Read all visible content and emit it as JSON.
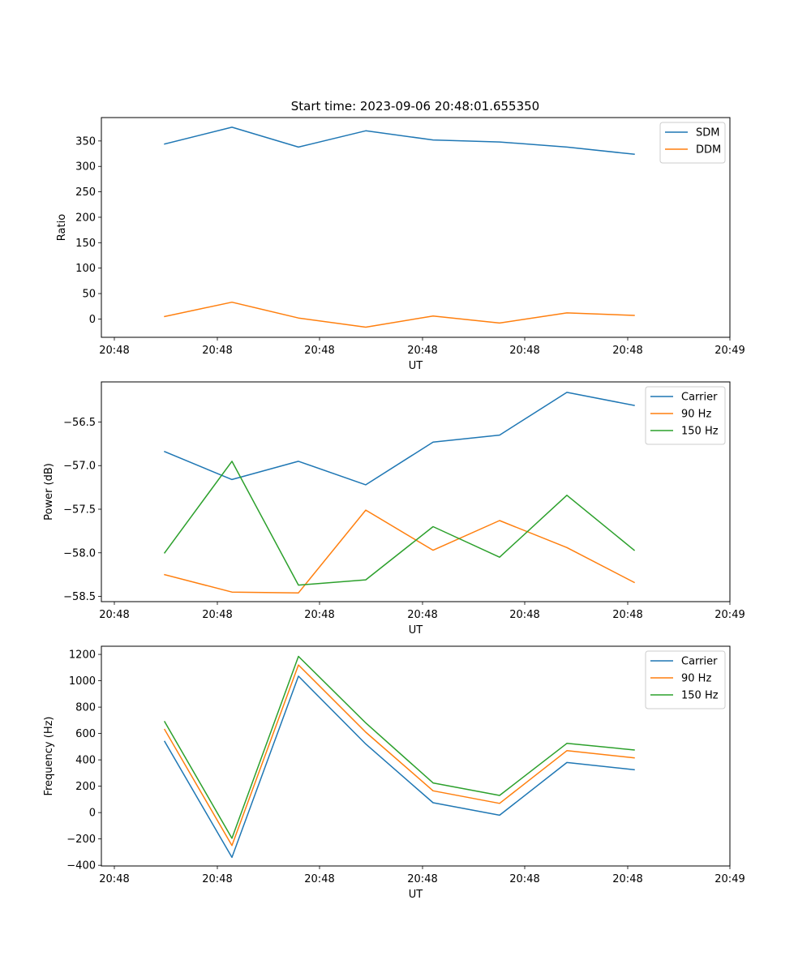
{
  "figure": {
    "title": "Start time: 2023-09-06 20:48:01.655350"
  },
  "chart_data": [
    {
      "type": "line",
      "ylabel": "Ratio",
      "xlabel": "UT",
      "xticklabels": [
        "20:48",
        "20:48",
        "20:48",
        "20:48",
        "20:48",
        "20:48",
        "20:49"
      ],
      "yticks": [
        0,
        50,
        100,
        150,
        200,
        250,
        300,
        350
      ],
      "yticklabels": [
        "0",
        "50",
        "100",
        "150",
        "200",
        "250",
        "300",
        "350"
      ],
      "ylim": [
        -36,
        396
      ],
      "legend_position": "top-right",
      "series": [
        {
          "name": "SDM",
          "color": "#1f77b4",
          "values": [
            344,
            377,
            338,
            370,
            352,
            348,
            338,
            324
          ]
        },
        {
          "name": "DDM",
          "color": "#ff7f0e",
          "values": [
            5,
            33,
            2,
            -16,
            6,
            -8,
            12,
            7
          ]
        }
      ]
    },
    {
      "type": "line",
      "ylabel": "Power (dB)",
      "xlabel": "UT",
      "xticklabels": [
        "20:48",
        "20:48",
        "20:48",
        "20:48",
        "20:48",
        "20:48",
        "20:49"
      ],
      "yticks": [
        -58.5,
        -58.0,
        -57.5,
        -57.0,
        -56.5
      ],
      "yticklabels": [
        "−58.5",
        "−58.0",
        "−57.5",
        "−57.0",
        "−56.5"
      ],
      "ylim": [
        -58.56,
        -56.04
      ],
      "legend_position": "top-right",
      "series": [
        {
          "name": "Carrier",
          "color": "#1f77b4",
          "values": [
            -56.84,
            -57.16,
            -56.95,
            -57.22,
            -56.73,
            -56.65,
            -56.16,
            -56.31
          ]
        },
        {
          "name": "90 Hz",
          "color": "#ff7f0e",
          "values": [
            -58.25,
            -58.45,
            -58.46,
            -57.51,
            -57.97,
            -57.63,
            -57.94,
            -58.34
          ]
        },
        {
          "name": "150 Hz",
          "color": "#2ca02c",
          "values": [
            -58.0,
            -56.95,
            -58.37,
            -58.31,
            -57.7,
            -58.05,
            -57.34,
            -57.97
          ]
        }
      ]
    },
    {
      "type": "line",
      "ylabel": "Frequency (Hz)",
      "xlabel": "UT",
      "xticklabels": [
        "20:48",
        "20:48",
        "20:48",
        "20:48",
        "20:48",
        "20:48",
        "20:49"
      ],
      "yticks": [
        -400,
        -200,
        0,
        200,
        400,
        600,
        800,
        1000,
        1200
      ],
      "yticklabels": [
        "−400",
        "−200",
        "0",
        "200",
        "400",
        "600",
        "800",
        "1000",
        "1200"
      ],
      "ylim": [
        -405,
        1262
      ],
      "legend_position": "top-right",
      "series": [
        {
          "name": "Carrier",
          "color": "#1f77b4",
          "values": [
            540,
            -340,
            1035,
            520,
            75,
            -20,
            380,
            325
          ]
        },
        {
          "name": "90 Hz",
          "color": "#ff7f0e",
          "values": [
            630,
            -250,
            1120,
            610,
            165,
            70,
            470,
            415
          ]
        },
        {
          "name": "150 Hz",
          "color": "#2ca02c",
          "values": [
            690,
            -195,
            1185,
            680,
            225,
            130,
            525,
            475
          ]
        }
      ]
    }
  ]
}
